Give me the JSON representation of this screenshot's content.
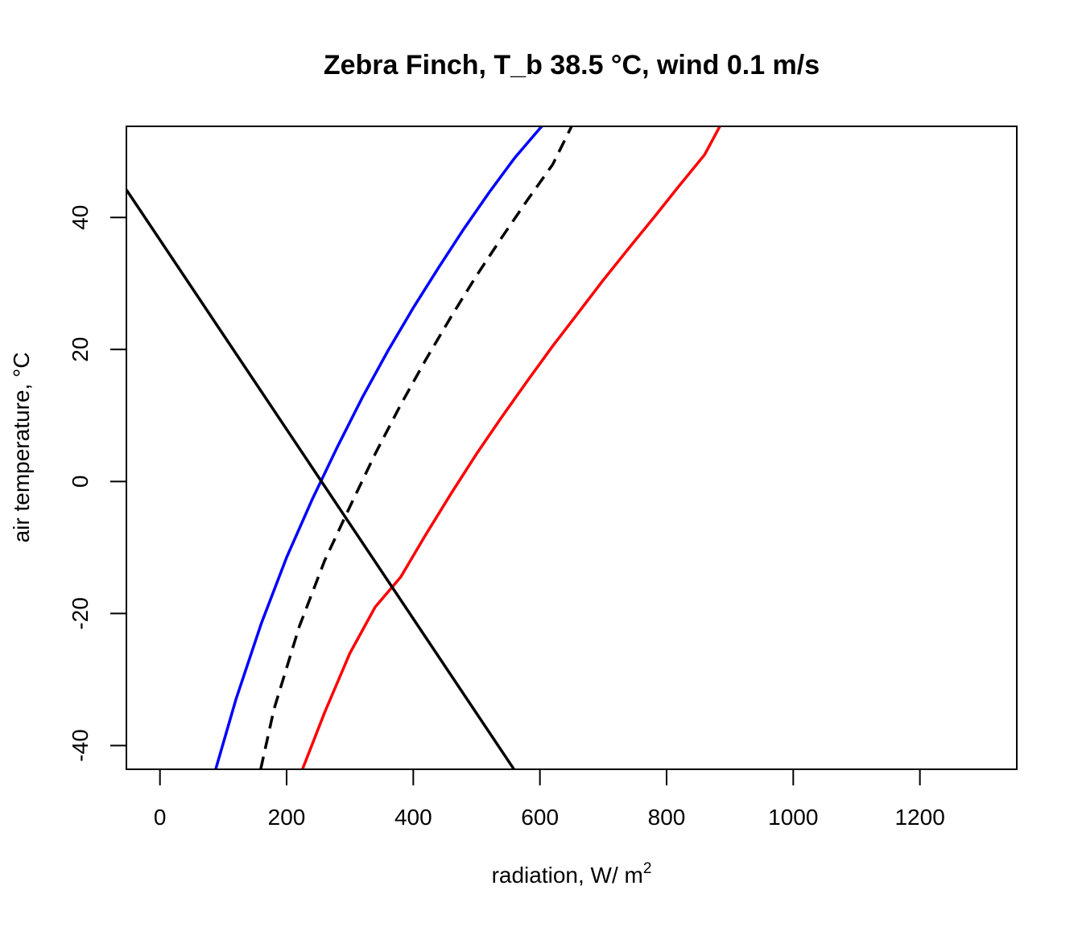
{
  "chart_data": {
    "type": "line",
    "title": "Zebra Finch, T_b 38.5 °C, wind 0.1 m/s",
    "xlabel": "radiation, W/ m",
    "xlabel_superscript": "2",
    "ylabel": "air temperature, °C",
    "xlim": [
      -53,
      1353
    ],
    "ylim": [
      -43.6,
      53.8
    ],
    "xticks": [
      0,
      200,
      400,
      600,
      800,
      1000,
      1200
    ],
    "yticks": [
      -40,
      -20,
      0,
      20,
      40
    ],
    "grid": false,
    "legend": "none",
    "series": [
      {
        "color": "#0000ff",
        "dash": "solid",
        "x": [
          88,
          120,
          160,
          200,
          240,
          280,
          320,
          360,
          400,
          440,
          480,
          520,
          560,
          600,
          630
        ],
        "y": [
          -43.6,
          -33,
          -21.5,
          -11.5,
          -2.8,
          5.2,
          12.8,
          19.8,
          26.3,
          32.4,
          38.3,
          43.8,
          49.0,
          53.5,
          56.5
        ]
      },
      {
        "color": "#000000",
        "dash": "dashed",
        "x": [
          159,
          180,
          220,
          260,
          300,
          340,
          380,
          420,
          460,
          500,
          540,
          580,
          620,
          650
        ],
        "y": [
          -43.6,
          -34.5,
          -22.0,
          -12.0,
          -3.8,
          4.2,
          11.6,
          18.5,
          25.0,
          31.2,
          37.0,
          42.6,
          48.0,
          53.8
        ]
      },
      {
        "color": "#ff0000",
        "dash": "solid",
        "x": [
          225,
          260,
          300,
          340,
          380,
          420,
          460,
          500,
          540,
          580,
          620,
          660,
          700,
          740,
          780,
          820,
          860,
          884
        ],
        "y": [
          -43.6,
          -35.0,
          -26.0,
          -19.0,
          -14.5,
          -8.0,
          -1.8,
          4.2,
          9.8,
          15.2,
          20.5,
          25.5,
          30.5,
          35.3,
          40.0,
          44.8,
          49.5,
          53.8
        ]
      },
      {
        "color": "#000000",
        "dash": "solid",
        "x": [
          -53,
          559
        ],
        "y": [
          44.2,
          -43.6
        ]
      }
    ]
  }
}
